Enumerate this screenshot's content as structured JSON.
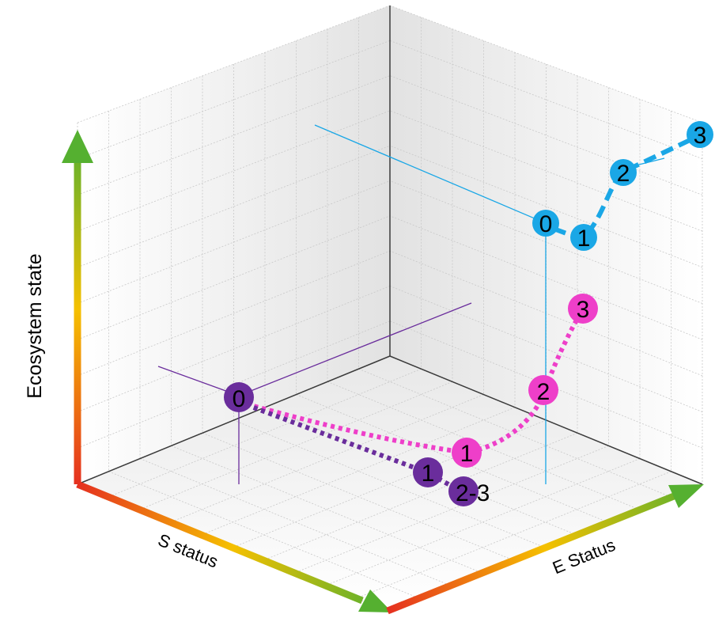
{
  "axes": {
    "y_label": "Ecosystem state",
    "x_label": "S status",
    "z_label": "E Status"
  },
  "colors": {
    "cyan": "#1aa7e6",
    "pink": "#ee3fc9",
    "purple": "#6a2d9c",
    "axis_gradient": [
      "#e53020",
      "#f5c000",
      "#55b030"
    ]
  },
  "series": [
    {
      "name": "",
      "color": "cyan",
      "points": [
        {
          "label": "0"
        },
        {
          "label": "1"
        },
        {
          "label": "2"
        },
        {
          "label": "3"
        }
      ]
    },
    {
      "name": "",
      "color": "pink",
      "points": [
        {
          "label": "0"
        },
        {
          "label": "1"
        },
        {
          "label": "2"
        },
        {
          "label": "3"
        }
      ]
    },
    {
      "name": "",
      "color": "purple",
      "points": [
        {
          "label": "0"
        },
        {
          "label": "1"
        },
        {
          "label": "2"
        },
        {
          "label": "2-3"
        }
      ]
    }
  ]
}
